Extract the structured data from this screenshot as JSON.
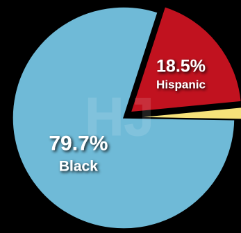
{
  "chart_data": {
    "type": "pie",
    "slices": [
      {
        "label": "Black",
        "value": 79.7,
        "value_text": "79.7%",
        "color": "#6fbad7"
      },
      {
        "label": "Hispanic",
        "value": 18.5,
        "value_text": "18.5%",
        "color": "#c1121f"
      },
      {
        "label": "",
        "value": 1.8,
        "value_text": "1.8%",
        "color": "#f6e27a"
      }
    ],
    "background_color": "#000000",
    "label_color": "#ffffff",
    "watermark": "HJ"
  }
}
